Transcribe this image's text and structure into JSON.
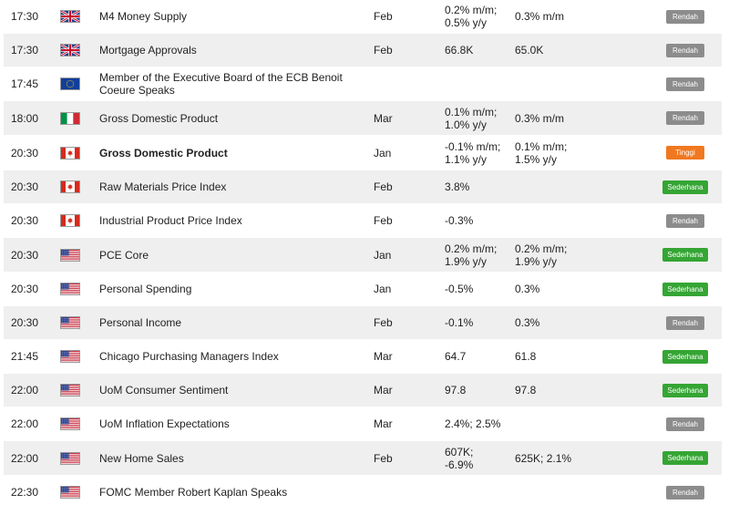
{
  "colors": {
    "low": "#8c8c8c",
    "mid": "#35a534",
    "high": "#f07820"
  },
  "rows": [
    {
      "time": "17:30",
      "flag": "uk-flag-icon",
      "event": "M4 Money Supply",
      "period": "Feb",
      "actual": "0.2% m/m;\n0.5% y/y",
      "forecast": "0.3% m/m",
      "impact": "Rendah",
      "level": "low",
      "bold": false
    },
    {
      "time": "17:30",
      "flag": "uk-flag-icon",
      "event": "Mortgage Approvals",
      "period": "Feb",
      "actual": "66.8K",
      "forecast": "65.0K",
      "impact": "Rendah",
      "level": "low",
      "bold": false
    },
    {
      "time": "17:45",
      "flag": "eu-flag-icon",
      "event": "Member of the Executive Board of the ECB Benoit\nCoeure Speaks",
      "period": "",
      "actual": "",
      "forecast": "",
      "impact": "Rendah",
      "level": "low",
      "bold": false
    },
    {
      "time": "18:00",
      "flag": "italy-flag-icon",
      "event": "Gross Domestic Product",
      "period": "Mar",
      "actual": "0.1% m/m;\n1.0% y/y",
      "forecast": "0.3% m/m",
      "impact": "Rendah",
      "level": "low",
      "bold": false
    },
    {
      "time": "20:30",
      "flag": "canada-flag-icon",
      "event": "Gross Domestic Product",
      "period": "Jan",
      "actual": "-0.1% m/m;\n1.1% y/y",
      "forecast": "0.1% m/m;\n1.5% y/y",
      "impact": "Tinggi",
      "level": "high",
      "bold": true
    },
    {
      "time": "20:30",
      "flag": "canada-flag-icon",
      "event": "Raw Materials Price Index",
      "period": "Feb",
      "actual": "3.8%",
      "forecast": "",
      "impact": "Sederhana",
      "level": "mid",
      "bold": false
    },
    {
      "time": "20:30",
      "flag": "canada-flag-icon",
      "event": "Industrial Product Price Index",
      "period": "Feb",
      "actual": "-0.3%",
      "forecast": "",
      "impact": "Rendah",
      "level": "low",
      "bold": false
    },
    {
      "time": "20:30",
      "flag": "us-flag-icon",
      "event": "PCE Core",
      "period": "Jan",
      "actual": "0.2% m/m;\n1.9% y/y",
      "forecast": "0.2% m/m;\n1.9% y/y",
      "impact": "Sederhana",
      "level": "mid",
      "bold": false
    },
    {
      "time": "20:30",
      "flag": "us-flag-icon",
      "event": "Personal Spending",
      "period": "Jan",
      "actual": "-0.5%",
      "forecast": "0.3%",
      "impact": "Sederhana",
      "level": "mid",
      "bold": false
    },
    {
      "time": "20:30",
      "flag": "us-flag-icon",
      "event": "Personal Income",
      "period": "Feb",
      "actual": "-0.1%",
      "forecast": "0.3%",
      "impact": "Rendah",
      "level": "low",
      "bold": false
    },
    {
      "time": "21:45",
      "flag": "us-flag-icon",
      "event": "Chicago Purchasing Managers Index",
      "period": "Mar",
      "actual": "64.7",
      "forecast": "61.8",
      "impact": "Sederhana",
      "level": "mid",
      "bold": false
    },
    {
      "time": "22:00",
      "flag": "us-flag-icon",
      "event": "UoM Consumer Sentiment",
      "period": "Mar",
      "actual": "97.8",
      "forecast": "97.8",
      "impact": "Sederhana",
      "level": "mid",
      "bold": false
    },
    {
      "time": "22:00",
      "flag": "us-flag-icon",
      "event": "UoM Inflation Expectations",
      "period": "Mar",
      "actual": "2.4%; 2.5%",
      "forecast": "",
      "impact": "Rendah",
      "level": "low",
      "bold": false
    },
    {
      "time": "22:00",
      "flag": "us-flag-icon",
      "event": "New Home Sales",
      "period": "Feb",
      "actual": "607K;\n-6.9%",
      "forecast": "625K; 2.1%",
      "impact": "Sederhana",
      "level": "mid",
      "bold": false
    },
    {
      "time": "22:30",
      "flag": "us-flag-icon",
      "event": "FOMC Member Robert Kaplan Speaks",
      "period": "",
      "actual": "",
      "forecast": "",
      "impact": "Rendah",
      "level": "low",
      "bold": false
    }
  ]
}
